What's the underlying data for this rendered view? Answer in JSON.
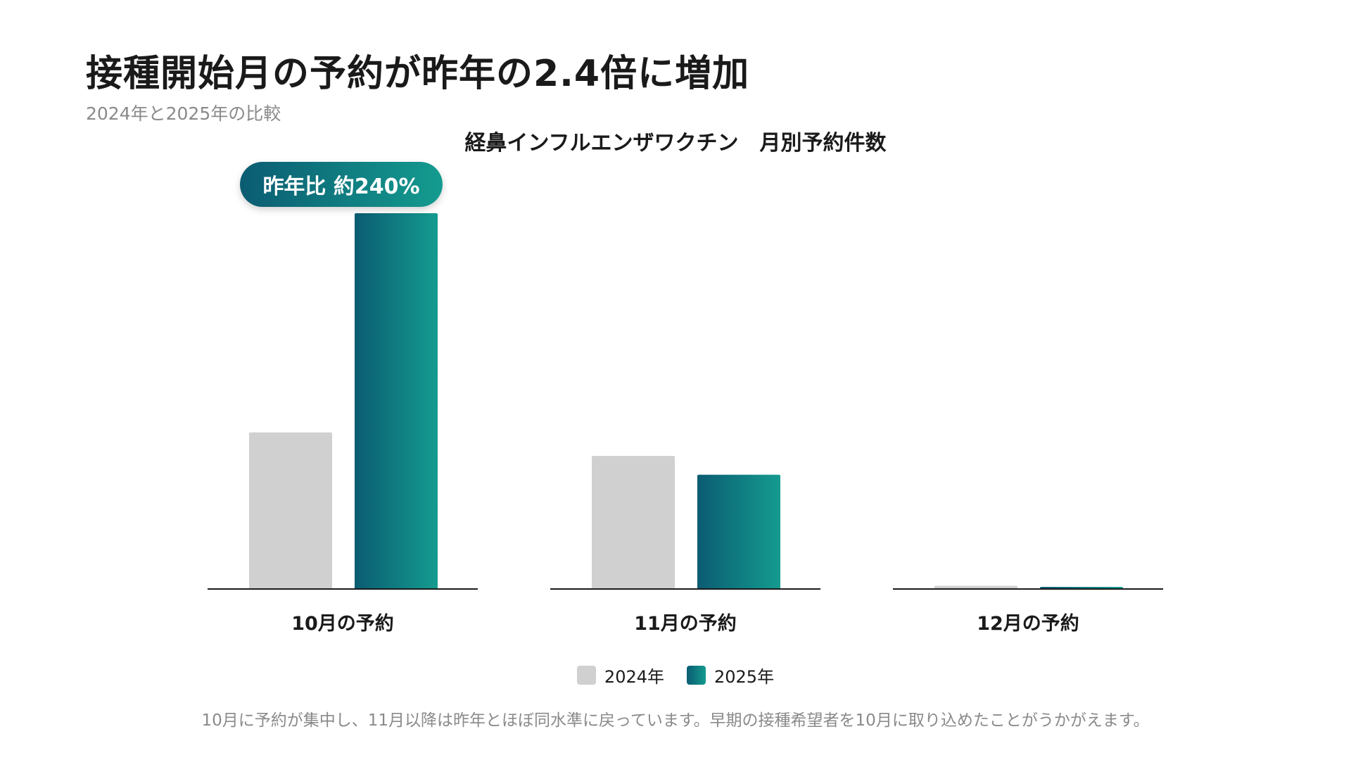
{
  "header": {
    "title": "接種開始月の予約が昨年の2.4倍に増加",
    "subtitle": "2024年と2025年の比較"
  },
  "annotation": {
    "badge": "昨年比 約240%"
  },
  "footnote": "10月に予約が集中し、11月以降は昨年とほぼ同水準に戻っています。早期の接種希望者を10月に取り込めたことがうかがえます。",
  "colors": {
    "series_2024": "#d0d0d0",
    "series_2025_start": "#0b5c72",
    "series_2025_end": "#149b8f",
    "axis": "#1a1a1a"
  },
  "chart_data": {
    "type": "bar",
    "title": "経鼻インフルエンザワクチン　月別予約件数",
    "categories": [
      "10月の予約",
      "11月の予約",
      "12月の予約"
    ],
    "series": [
      {
        "name": "2024年",
        "values": [
          100,
          85,
          2
        ]
      },
      {
        "name": "2025年",
        "values": [
          240,
          73,
          1
        ]
      }
    ],
    "ylim": [
      0,
      240
    ],
    "grid": false,
    "legend": "bottom-center",
    "ylabel": "",
    "xlabel": ""
  }
}
